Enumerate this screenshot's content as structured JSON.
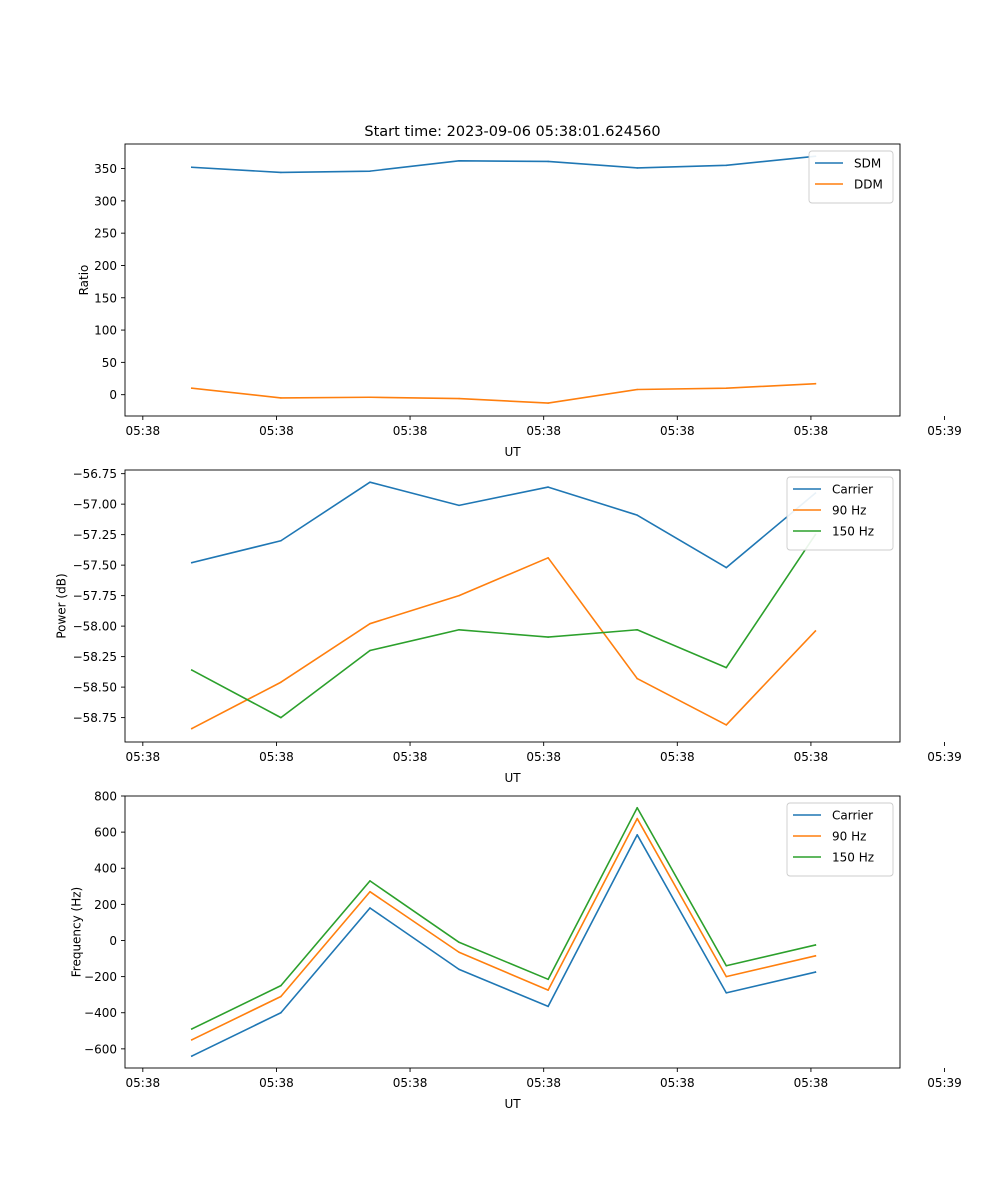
{
  "figure": {
    "title": "Start time: 2023-09-06 05:38:01.624560"
  },
  "colors": {
    "blue": "#1f77b4",
    "orange": "#ff7f0e",
    "green": "#2ca02c"
  },
  "chart_data": [
    {
      "type": "line",
      "id": "ratio",
      "title": "Start time: 2023-09-06 05:38:01.624560",
      "xlabel": "UT",
      "ylabel": "Ratio",
      "x": [
        1,
        2,
        3,
        4,
        5,
        6,
        7,
        8
      ],
      "xlim": [
        0.25,
        8.95
      ],
      "ylim": [
        -33,
        388
      ],
      "xticks": [
        0.45,
        1.95,
        3.45,
        4.95,
        6.45,
        7.95,
        9.45
      ],
      "xtick_labels": [
        "05:38",
        "05:38",
        "05:38",
        "05:38",
        "05:38",
        "05:38",
        "05:39"
      ],
      "yticks": [
        0,
        50,
        100,
        150,
        200,
        250,
        300,
        350
      ],
      "ytick_labels": [
        "0",
        "50",
        "100",
        "150",
        "200",
        "250",
        "300",
        "350"
      ],
      "legend_position": "top-right",
      "series": [
        {
          "name": "SDM",
          "color": "#1f77b4",
          "values": [
            352,
            344,
            346,
            362,
            361,
            351,
            355,
            369
          ]
        },
        {
          "name": "DDM",
          "color": "#ff7f0e",
          "values": [
            10,
            -5,
            -4,
            -6,
            -13,
            8,
            10,
            17
          ]
        }
      ]
    },
    {
      "type": "line",
      "id": "power",
      "title": "",
      "xlabel": "UT",
      "ylabel": "Power (dB)",
      "x": [
        1,
        2,
        3,
        4,
        5,
        6,
        7,
        8
      ],
      "xlim": [
        0.25,
        8.95
      ],
      "ylim": [
        -58.95,
        -56.72
      ],
      "xticks": [
        0.45,
        1.95,
        3.45,
        4.95,
        6.45,
        7.95,
        9.45
      ],
      "xtick_labels": [
        "05:38",
        "05:38",
        "05:38",
        "05:38",
        "05:38",
        "05:38",
        "05:39"
      ],
      "yticks": [
        -58.75,
        -58.5,
        -58.25,
        -58.0,
        -57.75,
        -57.5,
        -57.25,
        -57.0,
        -56.75
      ],
      "ytick_labels": [
        "−58.75",
        "−58.50",
        "−58.25",
        "−58.00",
        "−57.75",
        "−57.50",
        "−57.25",
        "−57.00",
        "−56.75"
      ],
      "legend_position": "top-right",
      "series": [
        {
          "name": "Carrier",
          "color": "#1f77b4",
          "values": [
            -57.48,
            -57.3,
            -56.82,
            -57.01,
            -56.86,
            -57.09,
            -57.52,
            -56.91
          ]
        },
        {
          "name": "90 Hz",
          "color": "#ff7f0e",
          "values": [
            -58.84,
            -58.46,
            -57.98,
            -57.75,
            -57.44,
            -58.43,
            -58.81,
            -58.04
          ]
        },
        {
          "name": "150 Hz",
          "color": "#2ca02c",
          "values": [
            -58.36,
            -58.75,
            -58.2,
            -58.03,
            -58.09,
            -58.03,
            -58.34,
            -57.25
          ]
        }
      ]
    },
    {
      "type": "line",
      "id": "frequency",
      "title": "",
      "xlabel": "UT",
      "ylabel": "Frequency (Hz)",
      "x": [
        1,
        2,
        3,
        4,
        5,
        6,
        7,
        8
      ],
      "xlim": [
        0.25,
        8.95
      ],
      "ylim": [
        -706,
        800
      ],
      "xticks": [
        0.45,
        1.95,
        3.45,
        4.95,
        6.45,
        7.95,
        9.45
      ],
      "xtick_labels": [
        "05:38",
        "05:38",
        "05:38",
        "05:38",
        "05:38",
        "05:38",
        "05:39"
      ],
      "yticks": [
        -600,
        -400,
        -200,
        0,
        200,
        400,
        600,
        800
      ],
      "ytick_labels": [
        "−600",
        "−400",
        "−200",
        "0",
        "200",
        "400",
        "600",
        "800"
      ],
      "legend_position": "top-right",
      "series": [
        {
          "name": "Carrier",
          "color": "#1f77b4",
          "values": [
            -640,
            -400,
            180,
            -160,
            -365,
            585,
            -290,
            -175
          ]
        },
        {
          "name": "90 Hz",
          "color": "#ff7f0e",
          "values": [
            -550,
            -310,
            270,
            -65,
            -275,
            675,
            -200,
            -85
          ]
        },
        {
          "name": "150 Hz",
          "color": "#2ca02c",
          "values": [
            -490,
            -250,
            330,
            -10,
            -215,
            735,
            -140,
            -25
          ]
        }
      ]
    }
  ]
}
